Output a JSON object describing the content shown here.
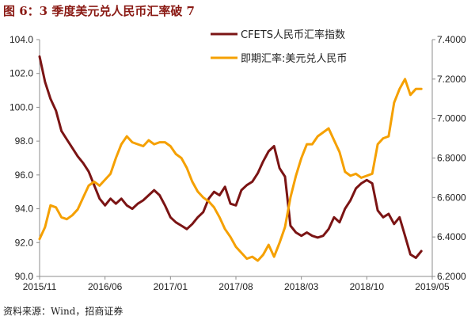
{
  "title": "图 6：3 季度美元兑人民币汇率破 7",
  "source": "资料来源：Wind，招商证券",
  "chart_data": {
    "type": "line",
    "x_ticks": [
      "2015/11",
      "2016/06",
      "2017/01",
      "2017/08",
      "2018/03",
      "2018/10",
      "2019/05"
    ],
    "y_left_ticks": [
      "90.0",
      "92.0",
      "94.0",
      "96.0",
      "98.0",
      "100.0",
      "102.0",
      "104.0"
    ],
    "y_right_ticks": [
      "6.2000",
      "6.4000",
      "6.6000",
      "6.8000",
      "7.0000",
      "7.2000",
      "7.4000"
    ],
    "ylim_left": [
      90,
      104
    ],
    "ylim_right": [
      6.2,
      7.4
    ],
    "legend_position": "top-right",
    "series": [
      {
        "name": "CFETS人民币汇率指数",
        "axis": "left",
        "color": "#7b1414",
        "points": [
          [
            0,
            103
          ],
          [
            0.5,
            101.5
          ],
          [
            1,
            100.5
          ],
          [
            1.5,
            99.8
          ],
          [
            2,
            98.6
          ],
          [
            2.5,
            98.1
          ],
          [
            3,
            97.6
          ],
          [
            3.5,
            97.1
          ],
          [
            4,
            96.7
          ],
          [
            4.5,
            96.2
          ],
          [
            5,
            95.4
          ],
          [
            5.5,
            94.6
          ],
          [
            6,
            94.2
          ],
          [
            6.5,
            94.6
          ],
          [
            7,
            94.3
          ],
          [
            7.5,
            94.6
          ],
          [
            8,
            94.2
          ],
          [
            8.5,
            94.0
          ],
          [
            9,
            94.3
          ],
          [
            9.5,
            94.5
          ],
          [
            10,
            94.8
          ],
          [
            10.5,
            95.1
          ],
          [
            11,
            94.8
          ],
          [
            11.5,
            94.2
          ],
          [
            12,
            93.5
          ],
          [
            12.5,
            93.2
          ],
          [
            13,
            93.0
          ],
          [
            13.5,
            92.8
          ],
          [
            14,
            93.1
          ],
          [
            14.5,
            93.5
          ],
          [
            15,
            93.8
          ],
          [
            15.5,
            94.6
          ],
          [
            16,
            95.0
          ],
          [
            16.5,
            94.8
          ],
          [
            17,
            95.3
          ],
          [
            17.5,
            94.3
          ],
          [
            18,
            94.2
          ],
          [
            18.5,
            95.1
          ],
          [
            19,
            95.4
          ],
          [
            19.5,
            95.6
          ],
          [
            20,
            96.1
          ],
          [
            20.5,
            96.8
          ],
          [
            21,
            97.4
          ],
          [
            21.5,
            97.7
          ],
          [
            22,
            96.4
          ],
          [
            22.5,
            95.9
          ],
          [
            23,
            93.0
          ],
          [
            23.5,
            92.6
          ],
          [
            24,
            92.4
          ],
          [
            24.5,
            92.6
          ],
          [
            25,
            92.4
          ],
          [
            25.5,
            92.3
          ],
          [
            26,
            92.4
          ],
          [
            26.5,
            92.8
          ],
          [
            27,
            93.5
          ],
          [
            27.5,
            93.2
          ],
          [
            28,
            94.0
          ],
          [
            28.5,
            94.5
          ],
          [
            29,
            95.2
          ],
          [
            29.5,
            95.5
          ],
          [
            30,
            95.7
          ],
          [
            30.5,
            95.5
          ],
          [
            31,
            93.9
          ],
          [
            31.5,
            93.5
          ],
          [
            32,
            93.7
          ],
          [
            32.5,
            93.1
          ],
          [
            33,
            93.5
          ],
          [
            33.5,
            92.4
          ],
          [
            34,
            91.3
          ],
          [
            34.5,
            91.1
          ],
          [
            35,
            91.5
          ]
        ]
      },
      {
        "name": "即期汇率:美元兑人民币",
        "axis": "right",
        "color": "#f5a000",
        "points": [
          [
            0,
            6.39
          ],
          [
            0.5,
            6.45
          ],
          [
            1,
            6.56
          ],
          [
            1.5,
            6.55
          ],
          [
            2,
            6.5
          ],
          [
            2.5,
            6.49
          ],
          [
            3,
            6.51
          ],
          [
            3.5,
            6.54
          ],
          [
            4,
            6.6
          ],
          [
            4.5,
            6.66
          ],
          [
            5,
            6.68
          ],
          [
            5.5,
            6.66
          ],
          [
            6,
            6.69
          ],
          [
            6.5,
            6.72
          ],
          [
            7,
            6.8
          ],
          [
            7.5,
            6.87
          ],
          [
            8,
            6.91
          ],
          [
            8.5,
            6.88
          ],
          [
            9,
            6.87
          ],
          [
            9.5,
            6.86
          ],
          [
            10,
            6.89
          ],
          [
            10.5,
            6.87
          ],
          [
            11,
            6.88
          ],
          [
            11.5,
            6.88
          ],
          [
            12,
            6.86
          ],
          [
            12.5,
            6.82
          ],
          [
            13,
            6.8
          ],
          [
            13.5,
            6.75
          ],
          [
            14,
            6.68
          ],
          [
            14.5,
            6.63
          ],
          [
            15,
            6.6
          ],
          [
            15.5,
            6.58
          ],
          [
            16,
            6.55
          ],
          [
            16.5,
            6.5
          ],
          [
            17,
            6.44
          ],
          [
            17.5,
            6.4
          ],
          [
            18,
            6.35
          ],
          [
            18.5,
            6.32
          ],
          [
            19,
            6.29
          ],
          [
            19.5,
            6.3
          ],
          [
            20,
            6.28
          ],
          [
            20.5,
            6.31
          ],
          [
            21,
            6.36
          ],
          [
            21.5,
            6.3
          ],
          [
            22,
            6.37
          ],
          [
            22.5,
            6.45
          ],
          [
            23,
            6.6
          ],
          [
            23.5,
            6.71
          ],
          [
            24,
            6.8
          ],
          [
            24.5,
            6.87
          ],
          [
            25,
            6.87
          ],
          [
            25.5,
            6.91
          ],
          [
            26,
            6.93
          ],
          [
            26.5,
            6.95
          ],
          [
            27,
            6.89
          ],
          [
            27.5,
            6.83
          ],
          [
            28,
            6.73
          ],
          [
            28.5,
            6.71
          ],
          [
            29,
            6.72
          ],
          [
            29.5,
            6.7
          ],
          [
            30,
            6.71
          ],
          [
            30.5,
            6.72
          ],
          [
            31,
            6.87
          ],
          [
            31.5,
            6.9
          ],
          [
            32,
            6.91
          ],
          [
            32.5,
            7.08
          ],
          [
            33,
            7.15
          ],
          [
            33.5,
            7.2
          ],
          [
            34,
            7.12
          ],
          [
            34.5,
            7.15
          ],
          [
            35,
            7.15
          ]
        ]
      }
    ]
  }
}
